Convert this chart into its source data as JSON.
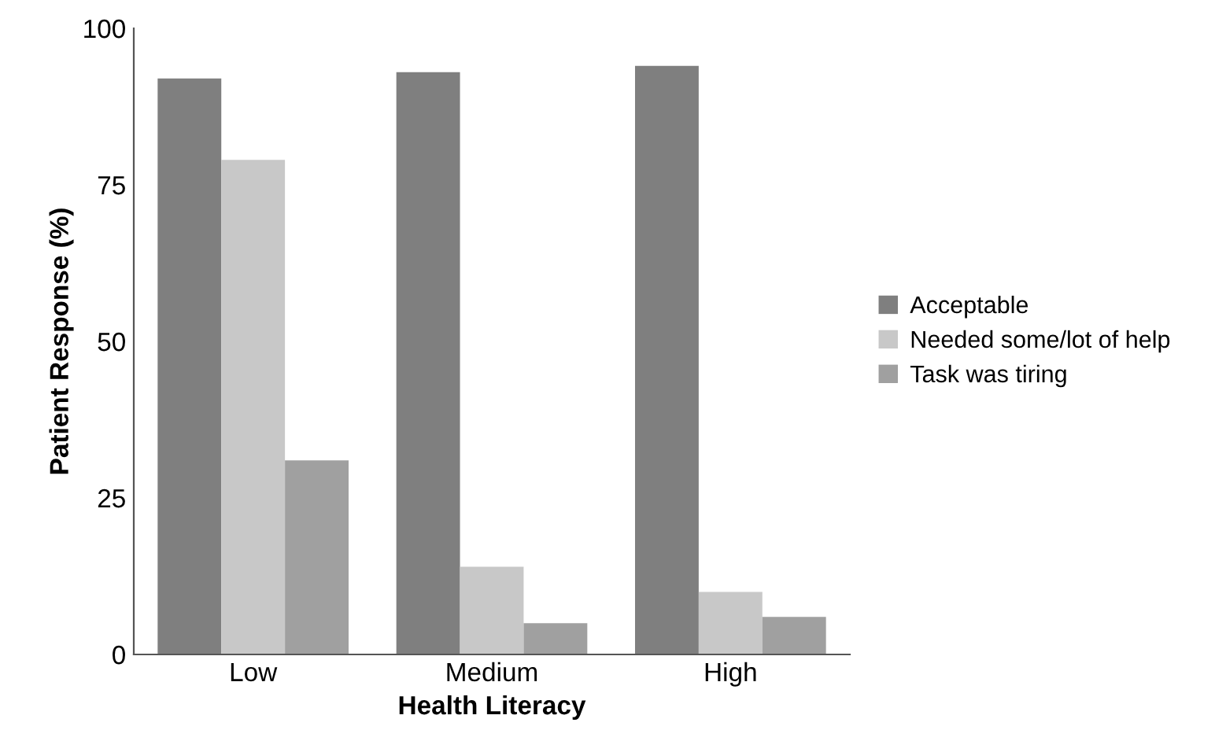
{
  "chart_data": {
    "type": "bar",
    "xlabel": "Health Literacy",
    "ylabel": "Patient Response (%)",
    "categories": [
      "Low",
      "Medium",
      "High"
    ],
    "series": [
      {
        "name": "Acceptable",
        "color": "#7f7f7f",
        "values": [
          92,
          93,
          94
        ]
      },
      {
        "name": "Needed some/lot of help",
        "color": "#c8c8c8",
        "values": [
          79,
          14,
          10
        ]
      },
      {
        "name": "Task was tiring",
        "color": "#a0a0a0",
        "values": [
          31,
          5,
          6
        ]
      }
    ],
    "ylim": [
      0,
      100
    ],
    "yticks": [
      0,
      25,
      50,
      75,
      100
    ],
    "grid": false,
    "legend": "right"
  }
}
